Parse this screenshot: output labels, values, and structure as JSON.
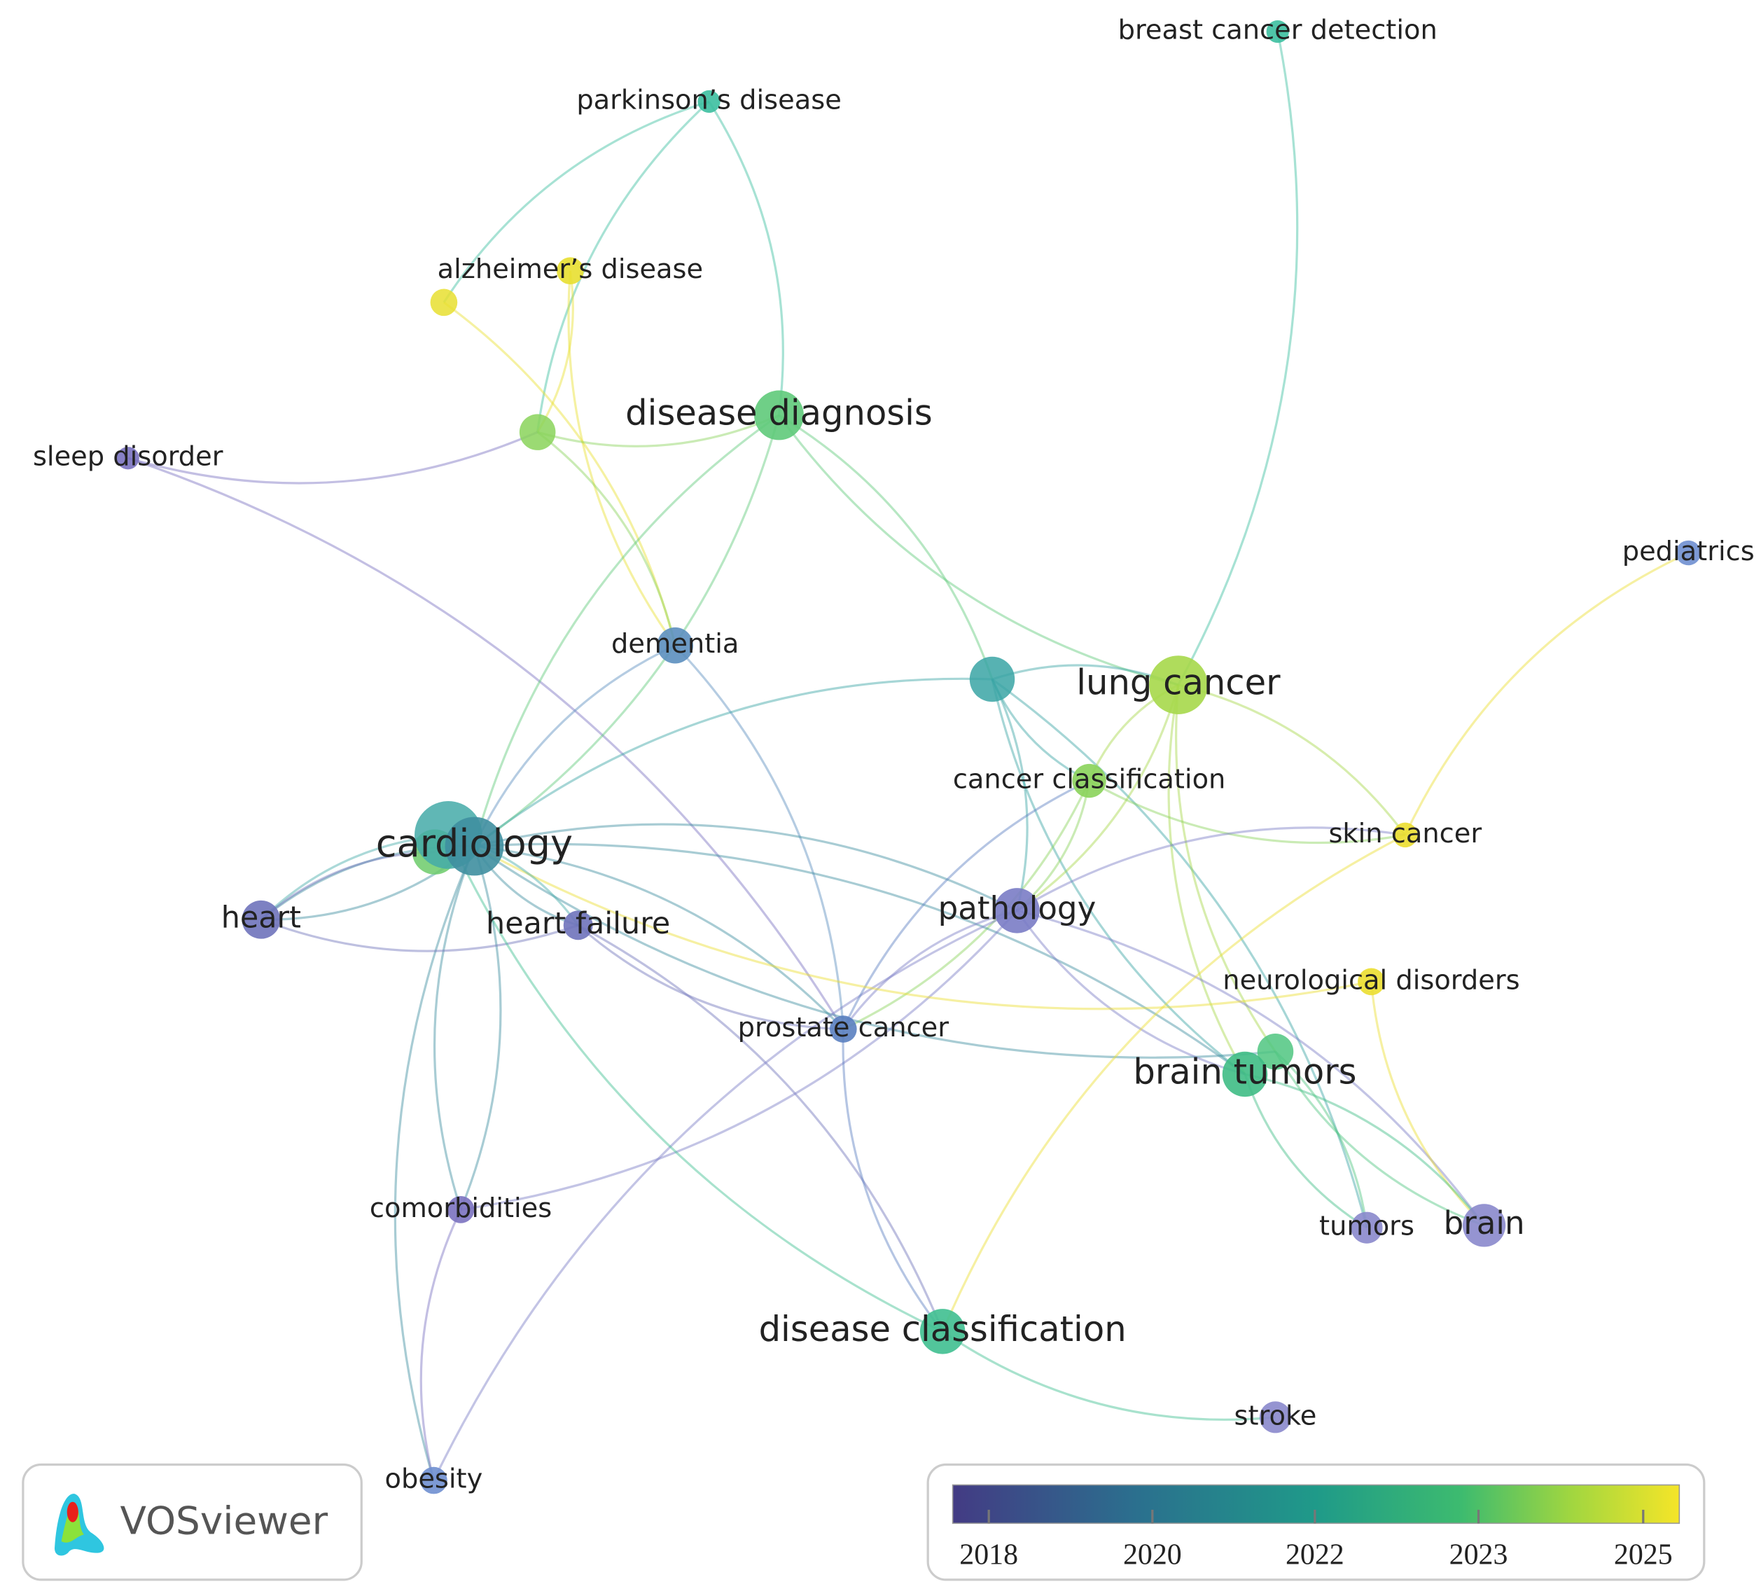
{
  "nodes": [
    {
      "label": "breast cancer detection",
      "color": "#3cbfa0"
    },
    {
      "label": "parkinson’s disease",
      "color": "#3cbfa0"
    },
    {
      "label": "alzheimer’s disease",
      "color": "#e8df30"
    },
    {
      "label": "disease diagnosis",
      "color": "#5fca7a"
    },
    {
      "label": "sleep disorder",
      "color": "#7a72c0"
    },
    {
      "label": "pediatrics",
      "color": "#6f8fd0"
    },
    {
      "label": "dementia",
      "color": "#5c8fbf"
    },
    {
      "label": "lung cancer",
      "color": "#a6d84a"
    },
    {
      "label": "cancer classification",
      "color": "#8ad35a"
    },
    {
      "label": "cardiology",
      "color": "#3f8fa0"
    },
    {
      "label": "skin cancer",
      "color": "#ebde30"
    },
    {
      "label": "heart",
      "color": "#6f73bb"
    },
    {
      "label": "heart failure",
      "color": "#6f73bb"
    },
    {
      "label": "pathology",
      "color": "#7a7cc5"
    },
    {
      "label": "neurological disorders",
      "color": "#ebde30"
    },
    {
      "label": "prostate cancer",
      "color": "#5a7fc0"
    },
    {
      "label": "brain tumors",
      "color": "#3fbc85"
    },
    {
      "label": "comorbidities",
      "color": "#7b72c0"
    },
    {
      "label": "tumors",
      "color": "#8a88cc"
    },
    {
      "label": "brain",
      "color": "#8a88cc"
    },
    {
      "label": "disease classification",
      "color": "#3fbf90"
    },
    {
      "label": "stroke",
      "color": "#8a88cc"
    },
    {
      "label": "obesity",
      "color": "#6f8fd0"
    }
  ],
  "legend": {
    "ticks": [
      "2018",
      "2020",
      "2022",
      "2023",
      "2025"
    ]
  },
  "brand": "VOSviewer"
}
